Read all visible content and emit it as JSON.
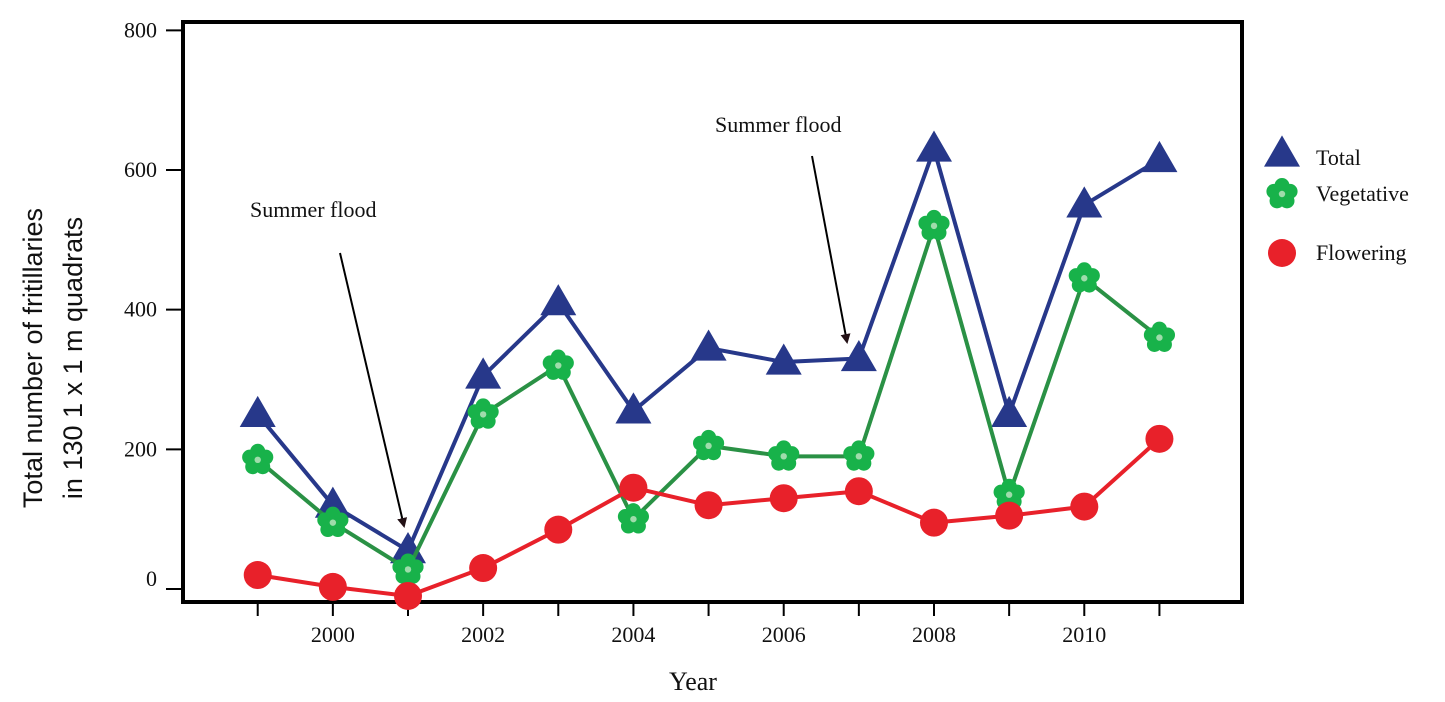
{
  "chart_data": {
    "type": "line",
    "title": "",
    "xlabel": "Year",
    "ylabel": [
      "Total number of fritillaries",
      "in 130 1 x 1 m quadrats"
    ],
    "xlim": [
      1998.3,
      2012.2
    ],
    "ylim": [
      -20,
      800
    ],
    "x_ticks": [
      2000,
      2002,
      2004,
      2006,
      2008,
      2010
    ],
    "y_ticks": [
      0,
      200,
      400,
      600,
      800
    ],
    "grid": false,
    "legend_position": "right",
    "x": [
      1999,
      2000,
      2001,
      2002,
      2003,
      2004,
      2005,
      2006,
      2007,
      2008,
      2009,
      2010,
      2011
    ],
    "series": [
      {
        "name": "Total",
        "color": "#27388a",
        "marker": "triangle",
        "values": [
          250,
          120,
          55,
          305,
          410,
          255,
          345,
          325,
          330,
          630,
          250,
          550,
          615
        ]
      },
      {
        "name": "Vegetative",
        "color": "#2a9145",
        "marker_color": "#18b24a",
        "marker": "flower",
        "values": [
          185,
          95,
          28,
          250,
          320,
          100,
          205,
          190,
          190,
          520,
          135,
          445,
          360
        ]
      },
      {
        "name": "Flowering",
        "color": "#e8212a",
        "marker": "circle",
        "values": [
          20,
          3,
          -10,
          30,
          85,
          145,
          120,
          130,
          140,
          95,
          105,
          118,
          215
        ]
      }
    ],
    "annotations": [
      {
        "text": "Summer flood",
        "points_to_x": 2001.0,
        "points_to_y": 90
      },
      {
        "text": "Summer flood",
        "points_to_x": 2006.8,
        "points_to_y": 395
      }
    ]
  }
}
